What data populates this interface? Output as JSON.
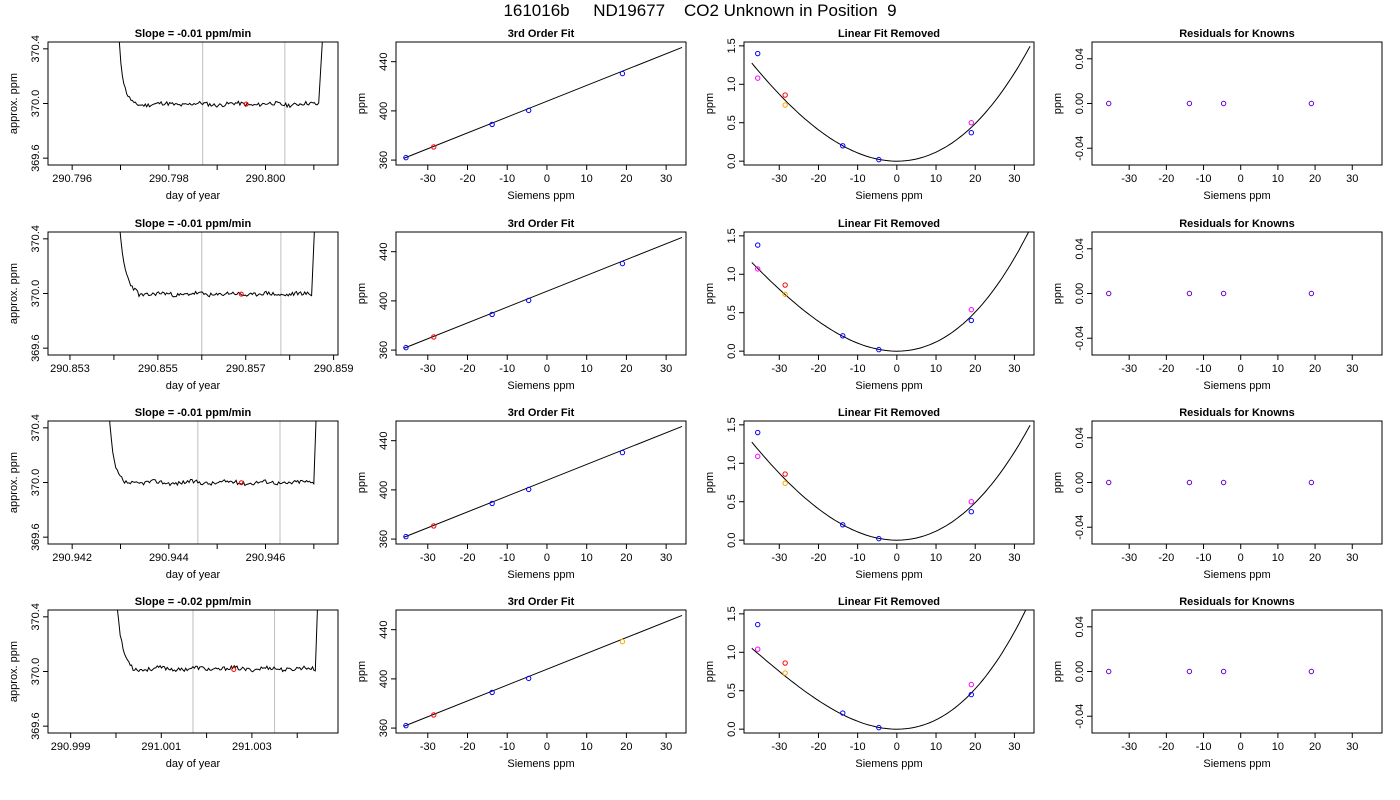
{
  "figure": {
    "title": "161016b     ND19677    CO2 Unknown in Position  9",
    "colors": {
      "line": "#000000",
      "known": "#0000ff",
      "unknown": "#ff0000",
      "ref_orange": "#ffa500",
      "ref_magenta": "#ff00ff",
      "vline": "#bebebe"
    }
  },
  "chart_data": [
    {
      "type": "line",
      "row": 1,
      "title": "Slope =  -0.01  ppm/min",
      "xlabel": "day of year",
      "ylabel": "approx. ppm",
      "xlim": [
        290.7955,
        290.8015
      ],
      "ylim": [
        369.55,
        370.45
      ],
      "xticks": [
        290.796,
        290.797,
        290.798,
        290.799,
        290.8,
        290.801
      ],
      "xticklabels": [
        "290.796",
        "",
        "290.798",
        "",
        "290.800",
        ""
      ],
      "yticks": [
        369.6,
        370.0,
        370.4
      ],
      "yticklabels": [
        "369.6",
        "370.0",
        "370.4"
      ],
      "vlines": [
        290.7987,
        290.8004
      ],
      "marker": {
        "x": 290.7996,
        "y": 369.995
      },
      "trace": {
        "x0": 290.79695,
        "x1": 290.8011,
        "base": 369.995,
        "spike_left": 0.00012,
        "spike_right": 0.0001,
        "seed": 11
      }
    },
    {
      "type": "line",
      "row": 1,
      "title": "3rd Order Fit",
      "xlabel": "Siemens ppm",
      "ylabel": "ppm",
      "xlim": [
        -38,
        35
      ],
      "ylim": [
        356,
        456
      ],
      "xticks": [
        -30,
        -20,
        -10,
        0,
        10,
        20,
        30
      ],
      "yticks": [
        360,
        400,
        440
      ],
      "line": {
        "x": [
          -36,
          34
        ],
        "y": [
          361.5,
          451.6
        ]
      },
      "points": [
        {
          "x": -35.5,
          "y": 362.0,
          "c": "known"
        },
        {
          "x": -28.5,
          "y": 370.7,
          "c": "unknown"
        },
        {
          "x": -13.8,
          "y": 389.0,
          "c": "known"
        },
        {
          "x": -4.6,
          "y": 400.4,
          "c": "known"
        },
        {
          "x": 19.0,
          "y": 430.3,
          "c": "known"
        }
      ]
    },
    {
      "type": "line",
      "row": 1,
      "title": "Linear Fit Removed",
      "xlabel": "Siemens ppm",
      "ylabel": "ppm",
      "xlim": [
        -39,
        35
      ],
      "ylim": [
        -0.05,
        1.55
      ],
      "xticks": [
        -30,
        -20,
        -10,
        0,
        10,
        20,
        30
      ],
      "yticks": [
        0,
        0.5,
        1.0,
        1.5
      ],
      "yticklabels": [
        "0.0",
        "0.5",
        "1.0",
        "1.5"
      ],
      "curve": {
        "x0": -37,
        "x1": 34,
        "vertex": 0,
        "a": 0.00112,
        "b": 5.1e-06
      },
      "points": [
        {
          "x": -35.5,
          "y": 1.4,
          "c": "known"
        },
        {
          "x": -35.5,
          "y": 1.08,
          "c": "ref_magenta"
        },
        {
          "x": -28.5,
          "y": 0.86,
          "c": "unknown"
        },
        {
          "x": -28.5,
          "y": 0.73,
          "c": "ref_orange"
        },
        {
          "x": -13.8,
          "y": 0.2,
          "c": "known"
        },
        {
          "x": -4.6,
          "y": 0.02,
          "c": "known"
        },
        {
          "x": 19.0,
          "y": 0.37,
          "c": "known"
        },
        {
          "x": 19.0,
          "y": 0.5,
          "c": "ref_magenta"
        }
      ]
    },
    {
      "type": "scatter",
      "row": 1,
      "title": "Residuals for Knowns",
      "xlabel": "Siemens ppm",
      "ylabel": "ppm",
      "xlim": [
        -40,
        38
      ],
      "ylim": [
        -0.055,
        0.055
      ],
      "xticks": [
        -30,
        -20,
        -10,
        0,
        10,
        20,
        30
      ],
      "yticks": [
        -0.04,
        0,
        0.04
      ],
      "yticklabels": [
        "-0.04",
        "0.00",
        "0.04"
      ],
      "points": [
        {
          "x": -35.5,
          "y": 0
        },
        {
          "x": -13.8,
          "y": 0
        },
        {
          "x": -4.6,
          "y": 0
        },
        {
          "x": 19.0,
          "y": 0
        }
      ]
    },
    {
      "type": "line",
      "row": 2,
      "title": "Slope =  -0.01  ppm/min",
      "xlabel": "day of year",
      "ylabel": "approx. ppm",
      "xlim": [
        290.8525,
        290.8591
      ],
      "ylim": [
        369.55,
        370.45
      ],
      "xticks": [
        290.853,
        290.854,
        290.855,
        290.856,
        290.857,
        290.858,
        290.859
      ],
      "xticklabels": [
        "290.853",
        "",
        "290.855",
        "",
        "290.857",
        "",
        "290.859"
      ],
      "yticks": [
        369.6,
        370.0,
        370.4
      ],
      "yticklabels": [
        "369.6",
        "370.0",
        "370.4"
      ],
      "vlines": [
        290.856,
        290.8578
      ],
      "marker": {
        "x": 290.8569,
        "y": 369.995
      },
      "trace": {
        "x0": 290.8541,
        "x1": 290.8585,
        "base": 369.995,
        "spike_left": 0.00018,
        "spike_right": 8e-05,
        "seed": 23
      }
    },
    {
      "type": "line",
      "row": 2,
      "title": "3rd Order Fit",
      "xlabel": "Siemens ppm",
      "ylabel": "ppm",
      "xlim": [
        -38,
        35
      ],
      "ylim": [
        356,
        456
      ],
      "xticks": [
        -30,
        -20,
        -10,
        0,
        10,
        20,
        30
      ],
      "yticks": [
        360,
        400,
        440
      ],
      "line": {
        "x": [
          -36,
          34
        ],
        "y": [
          361.5,
          451.6
        ]
      },
      "points": [
        {
          "x": -35.5,
          "y": 362.0,
          "c": "known"
        },
        {
          "x": -28.5,
          "y": 370.7,
          "c": "unknown"
        },
        {
          "x": -13.8,
          "y": 389.0,
          "c": "known"
        },
        {
          "x": -4.6,
          "y": 400.4,
          "c": "known"
        },
        {
          "x": 19.0,
          "y": 430.3,
          "c": "known"
        }
      ]
    },
    {
      "type": "line",
      "row": 2,
      "title": "Linear Fit Removed",
      "xlabel": "Siemens ppm",
      "ylabel": "ppm",
      "xlim": [
        -39,
        35
      ],
      "ylim": [
        -0.05,
        1.55
      ],
      "xticks": [
        -30,
        -20,
        -10,
        0,
        10,
        20,
        30
      ],
      "yticks": [
        0,
        0.5,
        1.0,
        1.5
      ],
      "yticklabels": [
        "0.0",
        "0.5",
        "1.0",
        "1.5"
      ],
      "curve": {
        "x0": -37,
        "x1": 34,
        "vertex": 0,
        "a": 0.00112,
        "b": 7.5e-06
      },
      "points": [
        {
          "x": -35.5,
          "y": 1.38,
          "c": "known"
        },
        {
          "x": -35.5,
          "y": 1.07,
          "c": "ref_magenta"
        },
        {
          "x": -28.5,
          "y": 0.86,
          "c": "unknown"
        },
        {
          "x": -28.5,
          "y": 0.74,
          "c": "ref_orange"
        },
        {
          "x": -13.8,
          "y": 0.2,
          "c": "known"
        },
        {
          "x": -4.6,
          "y": 0.02,
          "c": "known"
        },
        {
          "x": 19.0,
          "y": 0.4,
          "c": "known"
        },
        {
          "x": 19.0,
          "y": 0.54,
          "c": "ref_magenta"
        }
      ]
    },
    {
      "type": "scatter",
      "row": 2,
      "title": "Residuals for Knowns",
      "xlabel": "Siemens ppm",
      "ylabel": "ppm",
      "xlim": [
        -40,
        38
      ],
      "ylim": [
        -0.055,
        0.055
      ],
      "xticks": [
        -30,
        -20,
        -10,
        0,
        10,
        20,
        30
      ],
      "yticks": [
        -0.04,
        0,
        0.04
      ],
      "yticklabels": [
        "-0.04",
        "0.00",
        "0.04"
      ],
      "points": [
        {
          "x": -35.5,
          "y": 0
        },
        {
          "x": -13.8,
          "y": 0
        },
        {
          "x": -4.6,
          "y": 0
        },
        {
          "x": 19.0,
          "y": 0
        }
      ]
    },
    {
      "type": "line",
      "row": 3,
      "title": "Slope =  -0.01  ppm/min",
      "xlabel": "day of year",
      "ylabel": "approx. ppm",
      "xlim": [
        290.9415,
        290.9475
      ],
      "ylim": [
        369.55,
        370.45
      ],
      "xticks": [
        290.942,
        290.943,
        290.944,
        290.945,
        290.946,
        290.947
      ],
      "xticklabels": [
        "290.942",
        "",
        "290.944",
        "",
        "290.946",
        ""
      ],
      "yticks": [
        369.6,
        370.0,
        370.4
      ],
      "yticklabels": [
        "369.6",
        "370.0",
        "370.4"
      ],
      "vlines": [
        290.9446,
        290.9463
      ],
      "marker": {
        "x": 290.9455,
        "y": 369.998
      },
      "trace": {
        "x0": 290.94275,
        "x1": 290.947,
        "base": 370.0,
        "spike_left": 0.00012,
        "spike_right": 6e-05,
        "seed": 37
      }
    },
    {
      "type": "line",
      "row": 3,
      "title": "3rd Order Fit",
      "xlabel": "Siemens ppm",
      "ylabel": "ppm",
      "xlim": [
        -38,
        35
      ],
      "ylim": [
        356,
        456
      ],
      "xticks": [
        -30,
        -20,
        -10,
        0,
        10,
        20,
        30
      ],
      "yticks": [
        360,
        400,
        440
      ],
      "line": {
        "x": [
          -36,
          34
        ],
        "y": [
          361.5,
          451.6
        ]
      },
      "points": [
        {
          "x": -35.5,
          "y": 362.0,
          "c": "known"
        },
        {
          "x": -28.5,
          "y": 370.7,
          "c": "unknown"
        },
        {
          "x": -13.8,
          "y": 389.0,
          "c": "known"
        },
        {
          "x": -4.6,
          "y": 400.4,
          "c": "known"
        },
        {
          "x": 19.0,
          "y": 430.3,
          "c": "known"
        }
      ]
    },
    {
      "type": "line",
      "row": 3,
      "title": "Linear Fit Removed",
      "xlabel": "Siemens ppm",
      "ylabel": "ppm",
      "xlim": [
        -39,
        35
      ],
      "ylim": [
        -0.05,
        1.55
      ],
      "xticks": [
        -30,
        -20,
        -10,
        0,
        10,
        20,
        30
      ],
      "yticks": [
        0,
        0.5,
        1.0,
        1.5
      ],
      "yticklabels": [
        "0.0",
        "0.5",
        "1.0",
        "1.5"
      ],
      "curve": {
        "x0": -37,
        "x1": 34,
        "vertex": 0,
        "a": 0.00112,
        "b": 5.1e-06
      },
      "points": [
        {
          "x": -35.5,
          "y": 1.4,
          "c": "known"
        },
        {
          "x": -35.5,
          "y": 1.09,
          "c": "ref_magenta"
        },
        {
          "x": -28.5,
          "y": 0.86,
          "c": "unknown"
        },
        {
          "x": -28.5,
          "y": 0.74,
          "c": "ref_orange"
        },
        {
          "x": -13.8,
          "y": 0.2,
          "c": "known"
        },
        {
          "x": -4.6,
          "y": 0.02,
          "c": "known"
        },
        {
          "x": 19.0,
          "y": 0.37,
          "c": "known"
        },
        {
          "x": 19.0,
          "y": 0.5,
          "c": "ref_magenta"
        }
      ]
    },
    {
      "type": "scatter",
      "row": 3,
      "title": "Residuals for Knowns",
      "xlabel": "Siemens ppm",
      "ylabel": "ppm",
      "xlim": [
        -40,
        38
      ],
      "ylim": [
        -0.055,
        0.055
      ],
      "xticks": [
        -30,
        -20,
        -10,
        0,
        10,
        20,
        30
      ],
      "yticks": [
        -0.04,
        0,
        0.04
      ],
      "yticklabels": [
        "-0.04",
        "0.00",
        "0.04"
      ],
      "points": [
        {
          "x": -35.5,
          "y": 0
        },
        {
          "x": -13.8,
          "y": 0
        },
        {
          "x": -4.6,
          "y": 0
        },
        {
          "x": 19.0,
          "y": 0
        }
      ]
    },
    {
      "type": "line",
      "row": 4,
      "title": "Slope =  -0.02  ppm/min",
      "xlabel": "day of year",
      "ylabel": "approx. ppm",
      "xlim": [
        290.9985,
        291.0049
      ],
      "ylim": [
        369.55,
        370.45
      ],
      "xticks": [
        290.999,
        291.0,
        291.001,
        291.002,
        291.003,
        291.004
      ],
      "xticklabels": [
        "290.999",
        "",
        "291.001",
        "",
        "291.003",
        ""
      ],
      "yticks": [
        369.6,
        370.0,
        370.4
      ],
      "yticklabels": [
        "369.6",
        "370.0",
        "370.4"
      ],
      "vlines": [
        291.0017,
        291.0035
      ],
      "marker": {
        "x": 291.0026,
        "y": 370.015
      },
      "trace": {
        "x0": 291.0,
        "x1": 291.0044,
        "base": 370.02,
        "spike_left": 0.00015,
        "spike_right": 6e-05,
        "seed": 53
      }
    },
    {
      "type": "line",
      "row": 4,
      "title": "3rd Order Fit",
      "xlabel": "Siemens ppm",
      "ylabel": "ppm",
      "xlim": [
        -38,
        35
      ],
      "ylim": [
        356,
        456
      ],
      "xticks": [
        -30,
        -20,
        -10,
        0,
        10,
        20,
        30
      ],
      "yticks": [
        360,
        400,
        440
      ],
      "line": {
        "x": [
          -36,
          34
        ],
        "y": [
          361.5,
          451.6
        ]
      },
      "points": [
        {
          "x": -35.5,
          "y": 362.0,
          "c": "known"
        },
        {
          "x": -28.5,
          "y": 370.7,
          "c": "unknown"
        },
        {
          "x": -13.8,
          "y": 389.0,
          "c": "known"
        },
        {
          "x": -4.6,
          "y": 400.4,
          "c": "known"
        },
        {
          "x": 19.0,
          "y": 430.3,
          "c": "ref_orange"
        }
      ]
    },
    {
      "type": "line",
      "row": 4,
      "title": "Linear Fit Removed",
      "xlabel": "Siemens ppm",
      "ylabel": "ppm",
      "xlim": [
        -39,
        35
      ],
      "ylim": [
        -0.05,
        1.55
      ],
      "xticks": [
        -30,
        -20,
        -10,
        0,
        10,
        20,
        30
      ],
      "yticks": [
        0,
        0.5,
        1.0,
        1.5
      ],
      "yticklabels": [
        "0.0",
        "0.5",
        "1.0",
        "1.5"
      ],
      "curve": {
        "x0": -37,
        "x1": 34,
        "vertex": 0,
        "a": 0.00112,
        "b": 9.5e-06
      },
      "points": [
        {
          "x": -35.5,
          "y": 1.36,
          "c": "known"
        },
        {
          "x": -35.5,
          "y": 1.04,
          "c": "ref_magenta"
        },
        {
          "x": -28.5,
          "y": 0.86,
          "c": "unknown"
        },
        {
          "x": -28.5,
          "y": 0.73,
          "c": "ref_orange"
        },
        {
          "x": -13.8,
          "y": 0.21,
          "c": "known"
        },
        {
          "x": -4.6,
          "y": 0.02,
          "c": "known"
        },
        {
          "x": 19.0,
          "y": 0.45,
          "c": "known"
        },
        {
          "x": 19.0,
          "y": 0.58,
          "c": "ref_magenta"
        }
      ]
    },
    {
      "type": "scatter",
      "row": 4,
      "title": "Residuals for Knowns",
      "xlabel": "Siemens ppm",
      "ylabel": "ppm",
      "xlim": [
        -40,
        38
      ],
      "ylim": [
        -0.055,
        0.055
      ],
      "xticks": [
        -30,
        -20,
        -10,
        0,
        10,
        20,
        30
      ],
      "yticks": [
        -0.04,
        0,
        0.04
      ],
      "yticklabels": [
        "-0.04",
        "0.00",
        "0.04"
      ],
      "points": [
        {
          "x": -35.5,
          "y": 0
        },
        {
          "x": -13.8,
          "y": 0
        },
        {
          "x": -4.6,
          "y": 0
        },
        {
          "x": 19.0,
          "y": 0
        }
      ]
    }
  ]
}
